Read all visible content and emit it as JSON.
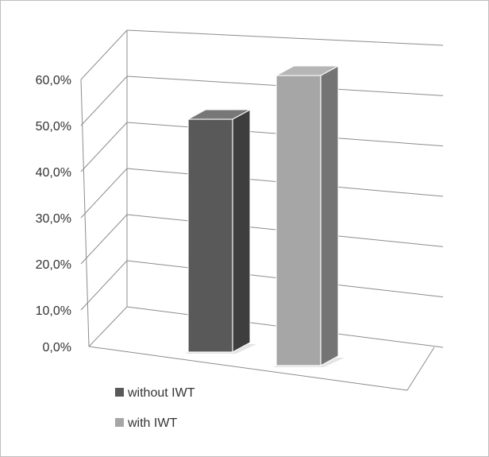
{
  "chart_data": {
    "type": "bar",
    "style": "3d-column",
    "categories": [
      ""
    ],
    "series": [
      {
        "name": "without IWT",
        "values": [
          0.448
        ],
        "color": "#595959"
      },
      {
        "name": "with IWT",
        "values": [
          0.555
        ],
        "color": "#a6a6a6"
      }
    ],
    "title": "",
    "xlabel": "",
    "ylabel": "",
    "ylim": [
      0,
      0.6
    ],
    "y_ticks": [
      "0,0%",
      "10,0%",
      "20,0%",
      "30,0%",
      "40,0%",
      "50,0%",
      "60,0%"
    ],
    "grid": true,
    "legend_position": "bottom-left",
    "frame_color": "#bfbfbf",
    "grid_color": "#8c8c8c"
  }
}
